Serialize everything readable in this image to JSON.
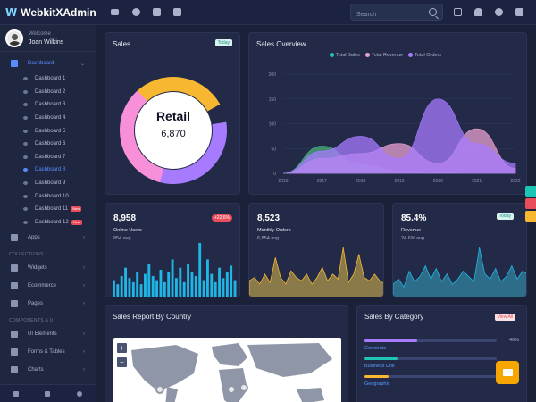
{
  "brand": {
    "logo": "W",
    "name": "WebkitXAdmin"
  },
  "user": {
    "welcome": "Welcome",
    "name": "Joan Wilkins"
  },
  "nav": {
    "dashboard": "Dashboard",
    "dashboards": [
      "Dashboard 1",
      "Dashboard 2",
      "Dashboard 3",
      "Dashboard 4",
      "Dashboard 5",
      "Dashboard 6",
      "Dashboard 7",
      "Dashboard 8",
      "Dashboard 9",
      "Dashboard 10",
      "Dashboard 11",
      "Dashboard 12"
    ],
    "new_badge": "New",
    "apps": "Apps",
    "collections_header": "COLLECTIONS",
    "widgets": "Widgets",
    "ecommerce": "Ecommerce",
    "pages": "Pages",
    "components_header": "COMPONENTS & UI",
    "ui_elements": "UI Elements",
    "forms_tables": "Forms & Tables",
    "charts": "Charts"
  },
  "search": {
    "placeholder": "Search"
  },
  "sales": {
    "title": "Sales",
    "badge": "Today",
    "center_label": "Retail",
    "center_value": "6,870"
  },
  "overview": {
    "title": "Sales Overview",
    "legend": [
      "Total Sales",
      "Total Revenue",
      "Total Orders"
    ]
  },
  "stats": [
    {
      "value": "8,958",
      "label": "Online Users",
      "sub": "854 avg",
      "badge": "+22,6%"
    },
    {
      "value": "8,523",
      "label": "Monthly Orders",
      "sub": "6,854 avg"
    },
    {
      "value": "85.4%",
      "label": "Revenue",
      "sub": "24.6% avg",
      "badge": "Today"
    }
  ],
  "country": {
    "title": "Sales Report By Country",
    "zoom_in": "+",
    "zoom_out": "−"
  },
  "category": {
    "title": "Sales By Category",
    "badge": "View All",
    "items": [
      {
        "name": "Corporate",
        "pct": "40%",
        "value": 40
      },
      {
        "name": "Business Unit",
        "pct": "",
        "value": 25
      },
      {
        "name": "Geographic",
        "pct": "18%",
        "value": 18
      }
    ]
  },
  "colors": {
    "accent": "#5b8cff",
    "yellow": "#f7b731",
    "pink": "#f78fd9",
    "purple": "#a77bff",
    "teal": "#1dc5b5",
    "green": "#4caf7c",
    "lavender": "#b39ddb"
  },
  "chart_data": [
    {
      "type": "pie",
      "title": "Sales",
      "labels": [
        "Segment A",
        "Segment B",
        "Segment C"
      ],
      "values": [
        30,
        35,
        35
      ],
      "colors": [
        "#f7b731",
        "#a77bff",
        "#f78fd9"
      ]
    },
    {
      "type": "area",
      "title": "Sales Overview",
      "x": [
        2016,
        2017,
        2018,
        2019,
        2020,
        2021,
        2022
      ],
      "ylim": [
        0,
        200
      ],
      "yticks": [
        0,
        50,
        100,
        150,
        200
      ],
      "series": [
        {
          "name": "Total Sales",
          "color": "#4caf7c",
          "values": [
            0,
            55,
            18,
            5,
            2,
            0,
            0
          ]
        },
        {
          "name": "Total Revenue",
          "color": "#e8a0d0",
          "values": [
            0,
            30,
            40,
            60,
            20,
            90,
            10
          ]
        },
        {
          "name": "Total Orders",
          "color": "#a77bff",
          "values": [
            0,
            45,
            75,
            30,
            150,
            60,
            20
          ]
        }
      ]
    },
    {
      "type": "bar",
      "title": "Online Users",
      "values": [
        8,
        6,
        10,
        14,
        9,
        7,
        12,
        6,
        11,
        16,
        10,
        8,
        13,
        7,
        12,
        18,
        9,
        14,
        7,
        16,
        12,
        10,
        26,
        8,
        18,
        11,
        7,
        14,
        9,
        12,
        15,
        8
      ]
    },
    {
      "type": "area",
      "title": "Monthly Orders",
      "values": [
        10,
        12,
        8,
        14,
        9,
        24,
        12,
        8,
        16,
        12,
        10,
        14,
        8,
        12,
        18,
        10,
        14,
        11,
        30,
        9,
        14,
        26,
        12,
        10,
        14,
        10,
        8
      ]
    },
    {
      "type": "area",
      "title": "Revenue",
      "values": [
        10,
        14,
        8,
        20,
        12,
        16,
        24,
        14,
        22,
        12,
        18,
        10,
        14,
        20,
        16,
        12,
        38,
        18,
        14,
        22,
        12,
        16,
        24,
        14,
        20,
        18
      ]
    }
  ]
}
